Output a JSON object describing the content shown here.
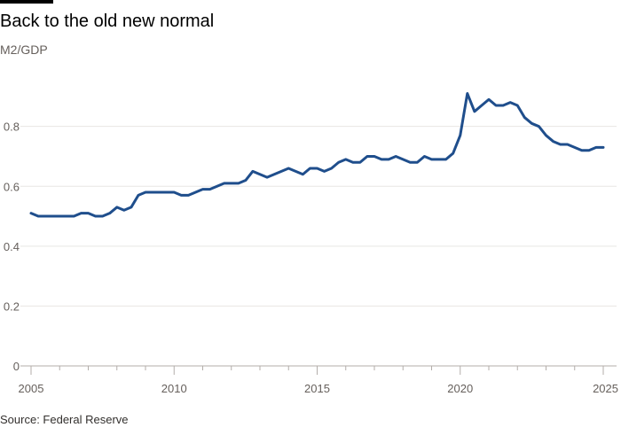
{
  "header": {
    "title": "Back to the old new normal",
    "subtitle": "M2/GDP"
  },
  "footer": {
    "source": "Source: Federal Reserve"
  },
  "colors": {
    "line": "#1f4e8c",
    "grid": "#e8e6e3",
    "axis": "#b3aeaa",
    "tick_text": "#66605c"
  },
  "chart_data": {
    "type": "line",
    "title": "Back to the old new normal",
    "subtitle": "M2/GDP",
    "xlabel": "",
    "ylabel": "",
    "xlim": [
      2005,
      2025
    ],
    "ylim": [
      0,
      0.95
    ],
    "grid": true,
    "x_ticks": [
      2005,
      2010,
      2015,
      2020,
      2025
    ],
    "x_tick_labels": [
      "2005",
      "2010",
      "2015",
      "2020",
      "2025"
    ],
    "y_ticks": [
      0,
      0.2,
      0.4,
      0.6,
      0.8
    ],
    "y_tick_labels": [
      "0",
      "0.2",
      "0.4",
      "0.6",
      "0.8"
    ],
    "series": [
      {
        "name": "M2/GDP",
        "points": [
          [
            2005.0,
            0.51
          ],
          [
            2005.25,
            0.5
          ],
          [
            2005.5,
            0.5
          ],
          [
            2005.75,
            0.5
          ],
          [
            2006.0,
            0.5
          ],
          [
            2006.25,
            0.5
          ],
          [
            2006.5,
            0.5
          ],
          [
            2006.75,
            0.51
          ],
          [
            2007.0,
            0.51
          ],
          [
            2007.25,
            0.5
          ],
          [
            2007.5,
            0.5
          ],
          [
            2007.75,
            0.51
          ],
          [
            2008.0,
            0.53
          ],
          [
            2008.25,
            0.52
          ],
          [
            2008.5,
            0.53
          ],
          [
            2008.75,
            0.57
          ],
          [
            2009.0,
            0.58
          ],
          [
            2009.25,
            0.58
          ],
          [
            2009.5,
            0.58
          ],
          [
            2009.75,
            0.58
          ],
          [
            2010.0,
            0.58
          ],
          [
            2010.25,
            0.57
          ],
          [
            2010.5,
            0.57
          ],
          [
            2010.75,
            0.58
          ],
          [
            2011.0,
            0.59
          ],
          [
            2011.25,
            0.59
          ],
          [
            2011.5,
            0.6
          ],
          [
            2011.75,
            0.61
          ],
          [
            2012.0,
            0.61
          ],
          [
            2012.25,
            0.61
          ],
          [
            2012.5,
            0.62
          ],
          [
            2012.75,
            0.65
          ],
          [
            2013.0,
            0.64
          ],
          [
            2013.25,
            0.63
          ],
          [
            2013.5,
            0.64
          ],
          [
            2013.75,
            0.65
          ],
          [
            2014.0,
            0.66
          ],
          [
            2014.25,
            0.65
          ],
          [
            2014.5,
            0.64
          ],
          [
            2014.75,
            0.66
          ],
          [
            2015.0,
            0.66
          ],
          [
            2015.25,
            0.65
          ],
          [
            2015.5,
            0.66
          ],
          [
            2015.75,
            0.68
          ],
          [
            2016.0,
            0.69
          ],
          [
            2016.25,
            0.68
          ],
          [
            2016.5,
            0.68
          ],
          [
            2016.75,
            0.7
          ],
          [
            2017.0,
            0.7
          ],
          [
            2017.25,
            0.69
          ],
          [
            2017.5,
            0.69
          ],
          [
            2017.75,
            0.7
          ],
          [
            2018.0,
            0.69
          ],
          [
            2018.25,
            0.68
          ],
          [
            2018.5,
            0.68
          ],
          [
            2018.75,
            0.7
          ],
          [
            2019.0,
            0.69
          ],
          [
            2019.25,
            0.69
          ],
          [
            2019.5,
            0.69
          ],
          [
            2019.75,
            0.71
          ],
          [
            2020.0,
            0.77
          ],
          [
            2020.25,
            0.91
          ],
          [
            2020.5,
            0.85
          ],
          [
            2020.75,
            0.87
          ],
          [
            2021.0,
            0.89
          ],
          [
            2021.25,
            0.87
          ],
          [
            2021.5,
            0.87
          ],
          [
            2021.75,
            0.88
          ],
          [
            2022.0,
            0.87
          ],
          [
            2022.25,
            0.83
          ],
          [
            2022.5,
            0.81
          ],
          [
            2022.75,
            0.8
          ],
          [
            2023.0,
            0.77
          ],
          [
            2023.25,
            0.75
          ],
          [
            2023.5,
            0.74
          ],
          [
            2023.75,
            0.74
          ],
          [
            2024.0,
            0.73
          ],
          [
            2024.25,
            0.72
          ],
          [
            2024.5,
            0.72
          ],
          [
            2024.75,
            0.73
          ],
          [
            2025.0,
            0.73
          ]
        ]
      }
    ]
  }
}
